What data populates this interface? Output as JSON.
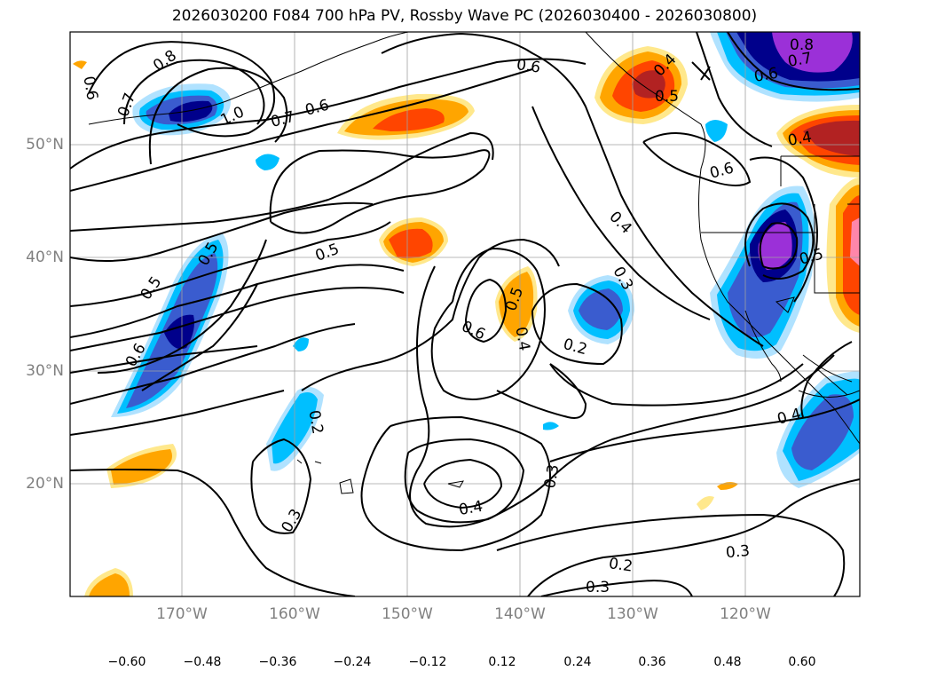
{
  "title": "2026030200 F084 700 hPa PV, Rossby Wave PC (2026030400 - 2026030800)",
  "map": {
    "lat_labels": [
      "50°N",
      "40°N",
      "30°N",
      "20°N"
    ],
    "lon_labels": [
      "170°W",
      "160°W",
      "150°W",
      "140°W",
      "130°W",
      "120°W"
    ]
  },
  "contour_labels": [
    "0.8",
    "0.6",
    "0.7",
    "1.0",
    "0.7",
    "0.6",
    "0.6",
    "0.4",
    "0.5",
    "0.8",
    "0.7",
    "0.6",
    "0.4",
    "0.6",
    "0.5",
    "0.5",
    "0.5",
    "0.5",
    "0.4",
    "0.3",
    "0.6",
    "0.5",
    "0.4",
    "0.2",
    "0.6",
    "0.2",
    "0.4",
    "0.3",
    "0.4",
    "0.3",
    "0.2",
    "0.3",
    "0.3"
  ],
  "colorbar": {
    "ticks": [
      "−0.60",
      "−0.48",
      "−0.36",
      "−0.24",
      "−0.12",
      "0.12",
      "0.24",
      "0.36",
      "0.48",
      "0.60"
    ],
    "colors": [
      "#9b30d8",
      "#00008b",
      "#3a5ccf",
      "#00bfff",
      "#b0e2ff",
      "#ffffff",
      "#ffe88c",
      "#ffa500",
      "#ff4500",
      "#b22222",
      "#ff86aa",
      "#ff86aa"
    ]
  }
}
